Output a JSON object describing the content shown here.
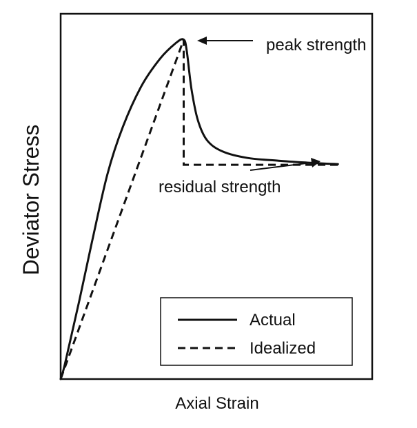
{
  "chart_data": {
    "type": "line",
    "xlabel": "Axial Strain",
    "ylabel": "Deviator Stress",
    "series": [
      {
        "name": "Actual",
        "style": "solid",
        "color": "#111111",
        "points": [
          [
            0.0,
            0.0
          ],
          [
            0.01,
            0.03
          ],
          [
            0.03,
            0.11
          ],
          [
            0.06,
            0.23
          ],
          [
            0.1,
            0.4
          ],
          [
            0.15,
            0.6
          ],
          [
            0.2,
            0.74
          ],
          [
            0.26,
            0.86
          ],
          [
            0.32,
            0.94
          ],
          [
            0.37,
            0.985
          ],
          [
            0.395,
            0.995
          ],
          [
            0.405,
            0.96
          ],
          [
            0.42,
            0.85
          ],
          [
            0.44,
            0.76
          ],
          [
            0.47,
            0.7
          ],
          [
            0.52,
            0.667
          ],
          [
            0.6,
            0.648
          ],
          [
            0.7,
            0.64
          ],
          [
            0.8,
            0.634
          ],
          [
            0.89,
            0.63
          ]
        ]
      },
      {
        "name": "Idealized",
        "style": "dashed",
        "color": "#111111",
        "points": [
          [
            0.0,
            0.0
          ],
          [
            0.395,
            0.995
          ],
          [
            0.395,
            0.628
          ],
          [
            0.89,
            0.628
          ]
        ]
      }
    ],
    "annotations": [
      {
        "text": "peak strength"
      },
      {
        "text": "residual strength"
      }
    ],
    "axes_visible": false,
    "grid": false,
    "legend": {
      "position": "bottom-right",
      "entries": [
        "Actual",
        "Idealized"
      ]
    }
  }
}
